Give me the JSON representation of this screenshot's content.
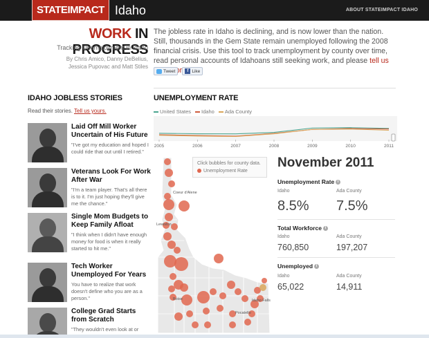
{
  "header": {
    "brand": "STATEIMPACT",
    "state": "Idaho",
    "about_link": "ABOUT STATEIMPACT IDAHO"
  },
  "intro": {
    "title_highlight": "WORK",
    "title_rest": " IN PROGRESS",
    "subtitle": "Tracking Unemployment in Idaho",
    "byline": "By Chris Amico, Danny DeBelius, Jessica Pupovac and Matt Stiles",
    "text": "The jobless rate in Idaho is declining, and is now lower than the nation. Still, thousands in the Gem State remain unemployed following the 2008 financial crisis. Use this tool to track unemployment by county over time, read personal accounts of Idahoans still seeking work, and please ",
    "link": "tell us your story",
    "text_end": ".",
    "tweet_label": "Tweet",
    "like_label": "Like",
    "fb_icon": "f"
  },
  "stories": {
    "heading": "IDAHO JOBLESS STORIES",
    "sub_text": "Read their stories. ",
    "sub_link": "Tell us yours.",
    "items": [
      {
        "name": "Laid Off Mill Worker Uncertain of His Future",
        "quote": "\"I've got my education and hoped I could ride that out until I retired.\""
      },
      {
        "name": "Veterans Look For Work After War",
        "quote": "\"I'm a team player. That's all there is to it. I'm just hoping they'll give me the chance.\""
      },
      {
        "name": "Single Mom Budgets to Keep Family Afloat",
        "quote": "\"I think when I didn't have enough money for food is when it really started to hit me.\""
      },
      {
        "name": "Tech Worker Unemployed For Years",
        "quote": "You have to realize that work doesn't define who you are as a person.\""
      },
      {
        "name": "College Grad Starts from Scratch",
        "quote": "\"They wouldn't even look at or"
      }
    ]
  },
  "rate": {
    "heading": "UNEMPLOYMENT RATE",
    "legend": [
      {
        "label": "United States",
        "color": "#4aa58f"
      },
      {
        "label": "Idaho",
        "color": "#cf5b3c"
      },
      {
        "label": "Ada County",
        "color": "#d9a65a"
      }
    ]
  },
  "chart_data": {
    "type": "line",
    "x": [
      2005,
      2006,
      2007,
      2008,
      2009,
      2010,
      2011
    ],
    "ticks": [
      "2005",
      "2006",
      "2007",
      "2008",
      "2009",
      "2010",
      "2011"
    ],
    "series": [
      {
        "name": "United States",
        "values": [
          5.1,
          4.7,
          4.6,
          5.8,
          9.3,
          9.6,
          9.0
        ]
      },
      {
        "name": "Idaho",
        "values": [
          3.9,
          3.3,
          2.8,
          5.0,
          8.2,
          8.9,
          8.5
        ]
      },
      {
        "name": "Ada County",
        "values": [
          3.5,
          2.9,
          2.5,
          4.7,
          8.2,
          8.5,
          7.5
        ]
      }
    ],
    "ylim": [
      0,
      10
    ]
  },
  "map": {
    "note": "Click bubbles for county data.",
    "legend_label": "Unemployment Rate",
    "cities": [
      "Coeur d'Alene",
      "Lewiston",
      "Boise",
      "Idaho Falls",
      "Pocatello"
    ]
  },
  "stats": {
    "month": "November 2011",
    "rate_label": "Unemployment Rate",
    "workforce_label": "Total Workforce",
    "unemployed_label": "Unemployed",
    "info_icon": "i",
    "col_a": "Idaho",
    "col_b": "Ada County",
    "rate_a": "8.5%",
    "rate_b": "7.5%",
    "workforce_a": "760,850",
    "workforce_b": "197,207",
    "unemployed_a": "65,022",
    "unemployed_b": "14,911"
  }
}
